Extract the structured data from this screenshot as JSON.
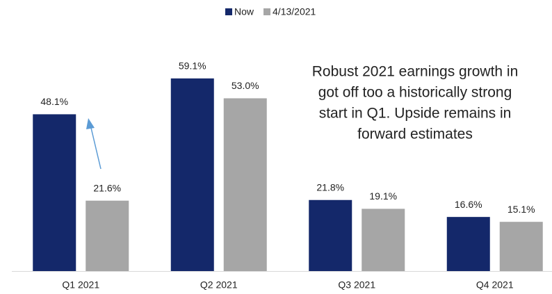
{
  "chart_data": {
    "type": "bar",
    "categories": [
      "Q1 2021",
      "Q2 2021",
      "Q3 2021",
      "Q4 2021"
    ],
    "series": [
      {
        "name": "Now",
        "color": "#14286a",
        "values": [
          48.1,
          59.1,
          21.8,
          16.6
        ],
        "value_labels": [
          "48.1%",
          "59.1%",
          "21.8%",
          "16.6%"
        ]
      },
      {
        "name": "4/13/2021",
        "color": "#a6a6a6",
        "values": [
          21.6,
          53.0,
          19.1,
          15.1
        ],
        "value_labels": [
          "21.6%",
          "53.0%",
          "19.1%",
          "15.1%"
        ]
      }
    ],
    "annotation": [
      "Robust 2021 earnings growth in",
      "got off too a historically strong",
      "start in Q1.  Upside remains in",
      "forward estimates"
    ],
    "legend": "top"
  }
}
